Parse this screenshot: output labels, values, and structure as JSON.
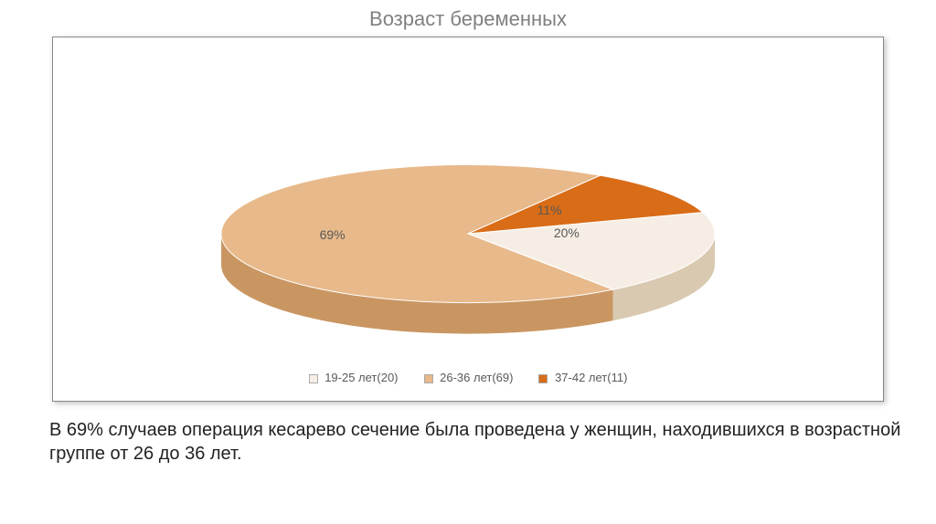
{
  "title": "Возраст беременных",
  "chart": {
    "type": "pie-3d",
    "background_color": "#ffffff",
    "border_color": "#888888",
    "slices": [
      {
        "label": "19-25 лет(20)",
        "value": 20,
        "pct_label": "20%",
        "top_color": "#f6eee4",
        "side_color": "#d9c9b0"
      },
      {
        "label": "26-36 лет(69)",
        "value": 69,
        "pct_label": "69%",
        "top_color": "#e8b98a",
        "side_color": "#c99662"
      },
      {
        "label": "37-42 лет(11)",
        "value": 11,
        "pct_label": "11%",
        "top_color": "#d96c17",
        "side_color": "#a85210"
      }
    ],
    "label_fontsize": 14,
    "label_color": "#595959",
    "legend_fontsize": 13,
    "legend_color": "#595959",
    "tilt_ratio": 0.28,
    "depth": 34,
    "rx": 270,
    "start_angle_deg": -18
  },
  "caption": "В 69% случаев операция кесарево сечение была проведена у женщин, находившихся в возрастной группе от 26 до 36 лет."
}
